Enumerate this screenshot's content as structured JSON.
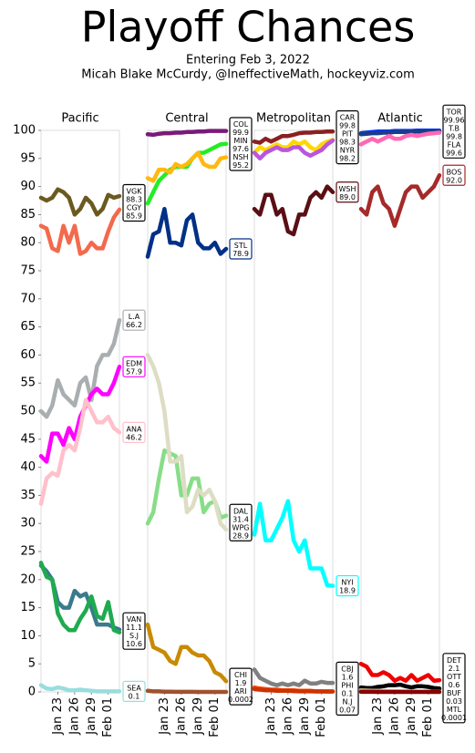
{
  "title": "Playoff Chances",
  "subtitle": [
    "Entering Feb 3, 2022",
    "Micah Blake McCurdy, @IneffectiveMath, hockeyviz.com"
  ],
  "chart_data": [
    {
      "type": "line",
      "title": "Pacific",
      "ylim": [
        0,
        100
      ],
      "yticks": [
        0,
        5,
        10,
        15,
        20,
        25,
        30,
        35,
        40,
        45,
        50,
        55,
        60,
        65,
        70,
        75,
        80,
        85,
        90,
        95,
        100
      ],
      "categories": [
        null,
        null,
        null,
        "Jan 23",
        null,
        null,
        "Jan 26",
        null,
        null,
        "Jan 29",
        null,
        null,
        "Feb 01",
        null,
        null
      ],
      "series": [
        {
          "name": "VGK",
          "color": "#6b5a1e",
          "values": [
            88,
            87.5,
            88,
            89.5,
            89,
            88,
            85,
            86,
            88,
            87,
            85,
            86,
            88.5,
            88,
            88.3
          ]
        },
        {
          "name": "CGY",
          "color": "#f4694b",
          "values": [
            83,
            82.5,
            79,
            78.5,
            83,
            80,
            83,
            78,
            78.5,
            80,
            79,
            79,
            82,
            84.5,
            85.9
          ]
        },
        {
          "name": "L.A",
          "color": "#a9aeb0",
          "values": [
            50,
            49,
            51,
            55.5,
            53,
            52,
            51,
            55,
            56,
            52,
            58,
            60,
            60,
            62,
            66.2
          ]
        },
        {
          "name": "EDM",
          "color": "#ff00ff",
          "values": [
            42,
            41,
            46,
            46,
            44,
            47,
            45,
            49,
            51,
            53,
            54,
            53,
            53,
            55,
            57.9
          ]
        },
        {
          "name": "ANA",
          "color": "#ffc0cb",
          "values": [
            33.5,
            38,
            39,
            38.5,
            43,
            44,
            43,
            47,
            52,
            50,
            48,
            48,
            49,
            47,
            46.2
          ]
        },
        {
          "name": "VAN",
          "color": "#3a7a8c",
          "values": [
            22.5,
            21.5,
            20,
            16,
            15,
            15,
            18,
            17,
            17.5,
            15,
            12,
            12,
            12,
            11.5,
            11.1
          ]
        },
        {
          "name": "S.J",
          "color": "#1faa50",
          "values": [
            23,
            20.5,
            20,
            14,
            12,
            11,
            11,
            13,
            14.5,
            17,
            13.5,
            13,
            16,
            11,
            10.6
          ]
        },
        {
          "name": "SEA",
          "color": "#99dddd",
          "values": [
            1.2,
            0.6,
            0.5,
            0.8,
            0.6,
            0.3,
            0.3,
            0.4,
            0.3,
            0.2,
            0.1,
            0.1,
            0.1,
            0.1,
            0.1
          ]
        }
      ]
    },
    {
      "type": "line",
      "title": "Central",
      "ylim": [
        0,
        100
      ],
      "categories": [
        null,
        null,
        null,
        "Jan 23",
        null,
        null,
        "Jan 26",
        null,
        null,
        "Jan 29",
        null,
        null,
        "Feb 01",
        null,
        null
      ],
      "series": [
        {
          "name": "COL",
          "color": "#7a1a7a",
          "values": [
            99.3,
            99.2,
            99.4,
            99.5,
            99.5,
            99.6,
            99.6,
            99.7,
            99.7,
            99.8,
            99.8,
            99.9,
            99.9,
            99.9,
            99.9
          ]
        },
        {
          "name": "MIN",
          "color": "#22ee22",
          "values": [
            87,
            89,
            91,
            92,
            93,
            93.5,
            93.5,
            93.5,
            95,
            96,
            96,
            96.5,
            97,
            97.5,
            97.6
          ]
        },
        {
          "name": "NSH",
          "color": "#ffb90f",
          "values": [
            91.5,
            91,
            93,
            93,
            92.5,
            94,
            93.5,
            94,
            95,
            96,
            94,
            93.5,
            93.5,
            95,
            95.2
          ]
        },
        {
          "name": "STL",
          "color": "#003087",
          "values": [
            77.5,
            81.5,
            82,
            86,
            80,
            80,
            79.5,
            84,
            85,
            80,
            79,
            79,
            80,
            78,
            78.9
          ]
        },
        {
          "name": "DAL",
          "color": "#88dd88",
          "values": [
            30,
            32,
            38,
            43,
            42.5,
            42,
            35,
            35,
            38,
            38,
            32,
            33.5,
            34,
            31,
            31.4
          ]
        },
        {
          "name": "WPG",
          "color": "#ddddc4",
          "values": [
            60,
            58,
            55,
            50,
            41,
            41,
            42,
            32,
            33,
            36,
            35,
            36,
            34,
            30,
            28.9
          ]
        },
        {
          "name": "CHI",
          "color": "#c88a00",
          "values": [
            12,
            8,
            7.5,
            7,
            5.5,
            5,
            8,
            8,
            7,
            6.5,
            6.5,
            5.5,
            3.5,
            3,
            1.9
          ]
        },
        {
          "name": "ARI",
          "color": "#a0522d",
          "values": [
            0.2,
            0.1,
            0.1,
            0.05,
            0.05,
            0.02,
            0.02,
            0.01,
            0.01,
            0.005,
            0.003,
            0.002,
            0.001,
            0.0005,
            0.0002
          ]
        }
      ]
    },
    {
      "type": "line",
      "title": "Metropolitan",
      "ylim": [
        0,
        100
      ],
      "categories": [
        null,
        null,
        null,
        "Jan 23",
        null,
        null,
        "Jan 26",
        null,
        null,
        "Jan 29",
        null,
        null,
        "Feb 01",
        null,
        null
      ],
      "series": [
        {
          "name": "CAR",
          "color": "#8b2020",
          "values": [
            98,
            97.8,
            98.5,
            98,
            98.5,
            99,
            99,
            99.2,
            99.5,
            99.6,
            99.6,
            99.7,
            99.7,
            99.8,
            99.8
          ]
        },
        {
          "name": "PIT",
          "color": "#ffd700",
          "values": [
            96,
            97,
            96.5,
            97,
            97.5,
            97,
            97,
            98,
            97.5,
            98,
            97,
            96.5,
            97.5,
            98,
            98.3
          ]
        },
        {
          "name": "NYR",
          "color": "#bb55dd",
          "values": [
            96,
            95,
            96,
            96.5,
            97,
            96.5,
            96.5,
            97,
            97,
            96,
            95.5,
            96,
            96.5,
            97.5,
            98.2
          ]
        },
        {
          "name": "WSH",
          "color": "#5a0f14",
          "values": [
            86,
            85,
            88.5,
            88.5,
            85,
            86,
            82,
            81.5,
            85,
            85,
            88,
            89,
            88,
            90,
            89
          ],
          "value_labels": [
            null,
            null,
            null,
            null,
            null,
            null,
            null,
            null,
            null,
            null,
            null,
            null,
            null,
            null,
            "89.0"
          ]
        },
        {
          "name": "NYI",
          "color": "#00ffff",
          "values": [
            28,
            33.5,
            27,
            27,
            29,
            31,
            34,
            27,
            25,
            27,
            22,
            22,
            22,
            19,
            18.9
          ]
        },
        {
          "name": "CBJ",
          "color": "#808080",
          "values": [
            4,
            2.5,
            2,
            1.5,
            1.2,
            1.5,
            1.2,
            1.5,
            1.2,
            2,
            1.5,
            1.5,
            1.8,
            1.6,
            1.6
          ]
        },
        {
          "name": "PHI",
          "color": "#ff4500",
          "values": [
            0.8,
            0.6,
            0.5,
            0.4,
            0.4,
            0.3,
            0.3,
            0.3,
            0.2,
            0.2,
            0.2,
            0.1,
            0.1,
            0.1,
            0.1
          ]
        },
        {
          "name": "N.J",
          "color": "#cc3300",
          "values": [
            0.5,
            0.4,
            0.3,
            0.3,
            0.2,
            0.2,
            0.2,
            0.15,
            0.1,
            0.1,
            0.1,
            0.08,
            0.08,
            0.07,
            0.07
          ]
        }
      ]
    },
    {
      "type": "line",
      "title": "Atlantic",
      "ylim": [
        0,
        100
      ],
      "categories": [
        null,
        null,
        null,
        "Jan 23",
        null,
        null,
        "Jan 26",
        null,
        null,
        "Jan 29",
        null,
        null,
        "Feb 01",
        null,
        null
      ],
      "series": [
        {
          "name": "TOR",
          "color": "#0033ff",
          "values": [
            99.5,
            99.6,
            99.7,
            99.8,
            99.8,
            99.8,
            99.9,
            99.9,
            99.9,
            99.9,
            99.95,
            99.95,
            99.96,
            99.96,
            99.96
          ]
        },
        {
          "name": "T.B",
          "color": "#1a3c8c",
          "values": [
            99.3,
            99.4,
            99.5,
            99.5,
            99.6,
            99.6,
            99.7,
            99.7,
            99.7,
            99.8,
            99.8,
            99.8,
            99.8,
            99.8,
            99.8
          ]
        },
        {
          "name": "FLA",
          "color": "#ff69b4",
          "values": [
            97.5,
            98,
            98.5,
            98,
            98.5,
            99,
            98.5,
            98.5,
            99,
            99.2,
            99,
            99.2,
            99.4,
            99.5,
            99.6
          ]
        },
        {
          "name": "BOS",
          "color": "#a52a2a",
          "values": [
            86,
            85,
            89,
            90,
            87,
            86,
            83,
            86,
            89,
            90,
            90,
            88,
            89,
            90,
            92
          ],
          "value_labels": [
            null,
            null,
            null,
            null,
            null,
            null,
            null,
            null,
            null,
            null,
            null,
            null,
            null,
            null,
            "92.0"
          ]
        },
        {
          "name": "DET",
          "color": "#ee0000",
          "values": [
            5,
            4.5,
            3,
            3,
            3.5,
            3,
            2,
            2.5,
            2,
            3,
            2,
            2.5,
            3,
            2,
            2.1
          ]
        },
        {
          "name": "OTT",
          "color": "#000000",
          "values": [
            0.8,
            0.7,
            0.7,
            0.9,
            1,
            1.2,
            1.2,
            1.3,
            1,
            0.8,
            1,
            1,
            0.9,
            0.7,
            0.6
          ]
        },
        {
          "name": "BUF",
          "color": "#d2b48c",
          "values": [
            0.3,
            0.25,
            0.2,
            0.2,
            0.15,
            0.1,
            0.1,
            0.1,
            0.08,
            0.06,
            0.05,
            0.05,
            0.04,
            0.03,
            0.03
          ]
        },
        {
          "name": "MTL",
          "color": "#880000",
          "values": [
            0.02,
            0.015,
            0.01,
            0.008,
            0.006,
            0.005,
            0.004,
            0.003,
            0.002,
            0.001,
            0.0008,
            0.0005,
            0.0003,
            0.0002,
            0.0001
          ]
        }
      ]
    }
  ]
}
